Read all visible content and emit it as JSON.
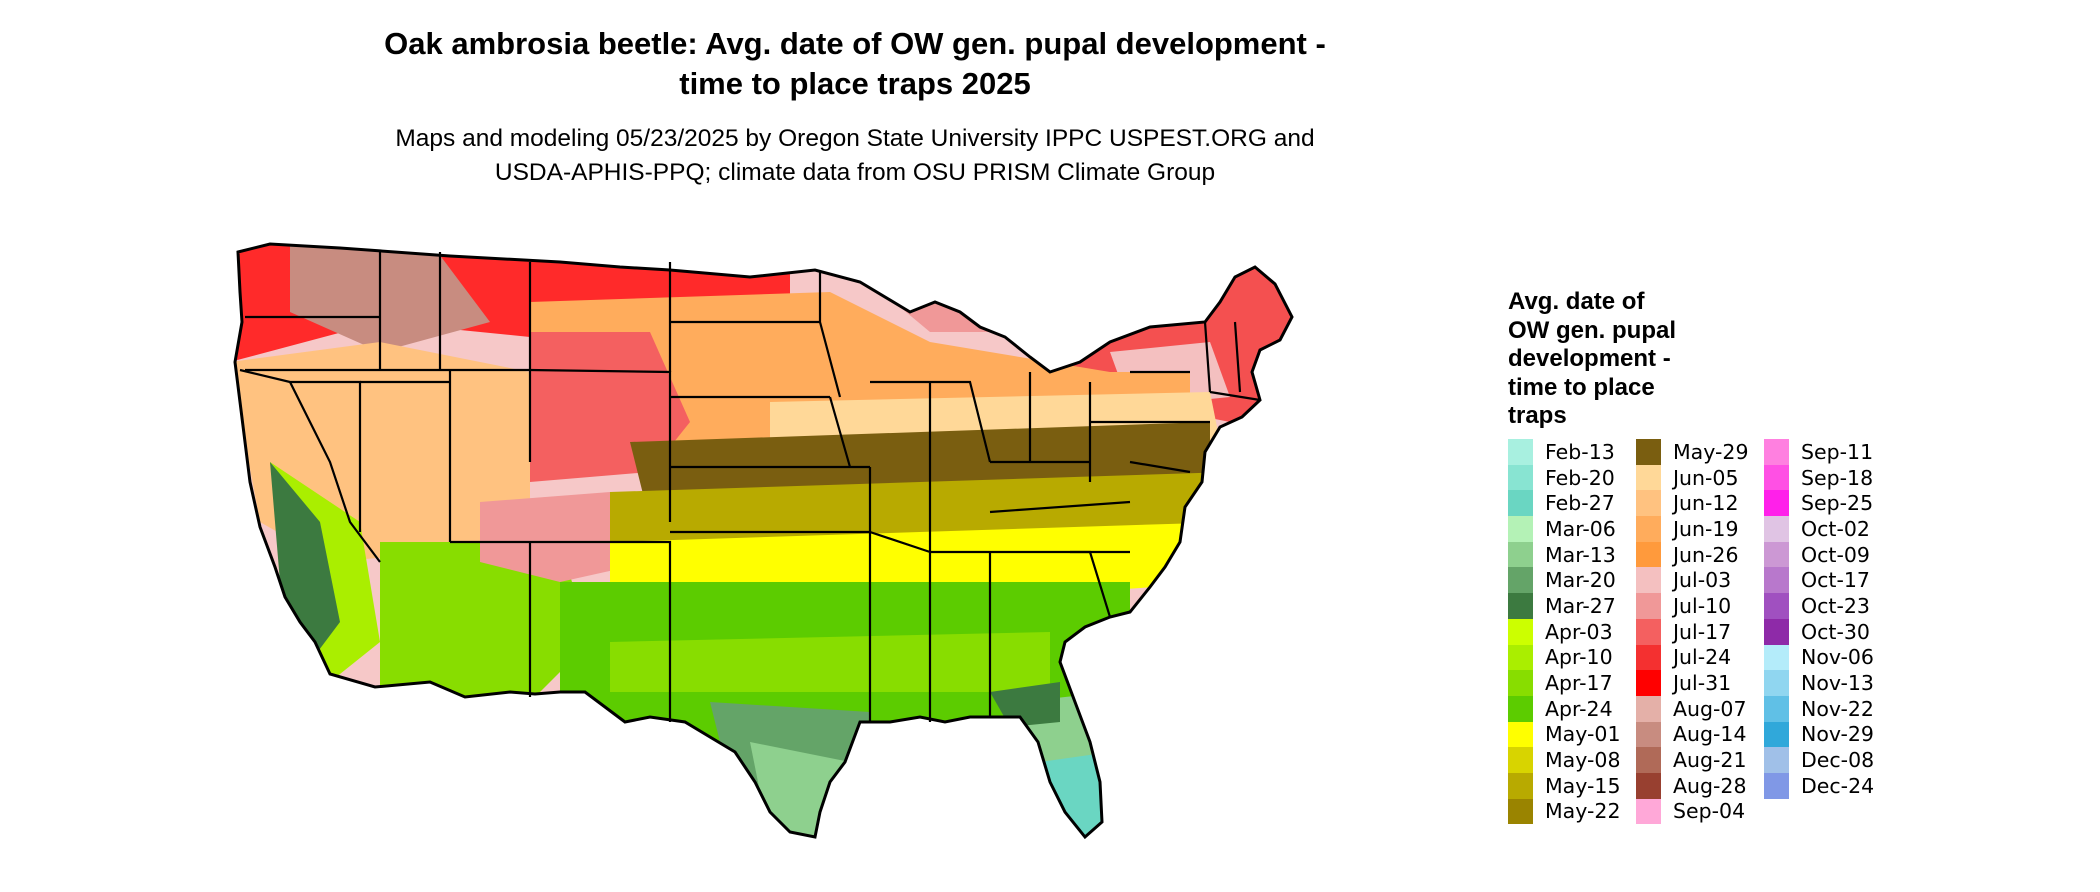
{
  "header": {
    "title_line1": "Oak ambrosia beetle: Avg. date of OW gen. pupal development -",
    "title_line2": "time to place traps 2025",
    "subtitle_line1": "Maps and modeling 05/23/2025 by Oregon State University IPPC USPEST.ORG and",
    "subtitle_line2": "USDA-APHIS-PPQ; climate data from OSU PRISM Climate Group"
  },
  "legend": {
    "title_lines": [
      "Avg. date of",
      "OW gen. pupal",
      "development -",
      "time to place",
      "traps"
    ],
    "columns": [
      [
        {
          "label": "Feb-13",
          "color": "#a8f0e0"
        },
        {
          "label": "Feb-20",
          "color": "#88e4d2"
        },
        {
          "label": "Feb-27",
          "color": "#6ad6c2"
        },
        {
          "label": "Mar-06",
          "color": "#b4f2b6"
        },
        {
          "label": "Mar-13",
          "color": "#8ed08e"
        },
        {
          "label": "Mar-20",
          "color": "#64a468"
        },
        {
          "label": "Mar-27",
          "color": "#3c7a40"
        },
        {
          "label": "Apr-03",
          "color": "#ccff00"
        },
        {
          "label": "Apr-10",
          "color": "#aaee00"
        },
        {
          "label": "Apr-17",
          "color": "#88dd00"
        },
        {
          "label": "Apr-24",
          "color": "#5ccc00"
        },
        {
          "label": "May-01",
          "color": "#ffff00"
        },
        {
          "label": "May-08",
          "color": "#d8d400"
        },
        {
          "label": "May-15",
          "color": "#b8aa00"
        },
        {
          "label": "May-22",
          "color": "#9a8400"
        }
      ],
      [
        {
          "label": "May-29",
          "color": "#7a5e10"
        },
        {
          "label": "Jun-05",
          "color": "#ffd898"
        },
        {
          "label": "Jun-12",
          "color": "#ffc280"
        },
        {
          "label": "Jun-19",
          "color": "#ffac5c"
        },
        {
          "label": "Jun-26",
          "color": "#ff9a3c"
        },
        {
          "label": "Jul-03",
          "color": "#f4c0c0"
        },
        {
          "label": "Jul-10",
          "color": "#f09898"
        },
        {
          "label": "Jul-17",
          "color": "#f46060"
        },
        {
          "label": "Jul-24",
          "color": "#f43030"
        },
        {
          "label": "Jul-31",
          "color": "#ff0000"
        },
        {
          "label": "Aug-07",
          "color": "#e4b0a8"
        },
        {
          "label": "Aug-14",
          "color": "#c88c80"
        },
        {
          "label": "Aug-21",
          "color": "#b06a58"
        },
        {
          "label": "Aug-28",
          "color": "#984030"
        },
        {
          "label": "Sep-04",
          "color": "#ffa8d8"
        }
      ],
      [
        {
          "label": "Sep-11",
          "color": "#ff80e0"
        },
        {
          "label": "Sep-18",
          "color": "#ff50e4"
        },
        {
          "label": "Sep-25",
          "color": "#ff20ea"
        },
        {
          "label": "Oct-02",
          "color": "#e0c4e4"
        },
        {
          "label": "Oct-09",
          "color": "#cc98d4"
        },
        {
          "label": "Oct-17",
          "color": "#b878cc"
        },
        {
          "label": "Oct-23",
          "color": "#a050c0"
        },
        {
          "label": "Oct-30",
          "color": "#8e2aa8"
        },
        {
          "label": "Nov-06",
          "color": "#b4ecfa"
        },
        {
          "label": "Nov-13",
          "color": "#90d6f0"
        },
        {
          "label": "Nov-22",
          "color": "#60c0e6"
        },
        {
          "label": "Nov-29",
          "color": "#30a8da"
        },
        {
          "label": "Dec-08",
          "color": "#a0c0e8"
        },
        {
          "label": "Dec-24",
          "color": "#8098e6"
        }
      ]
    ]
  }
}
